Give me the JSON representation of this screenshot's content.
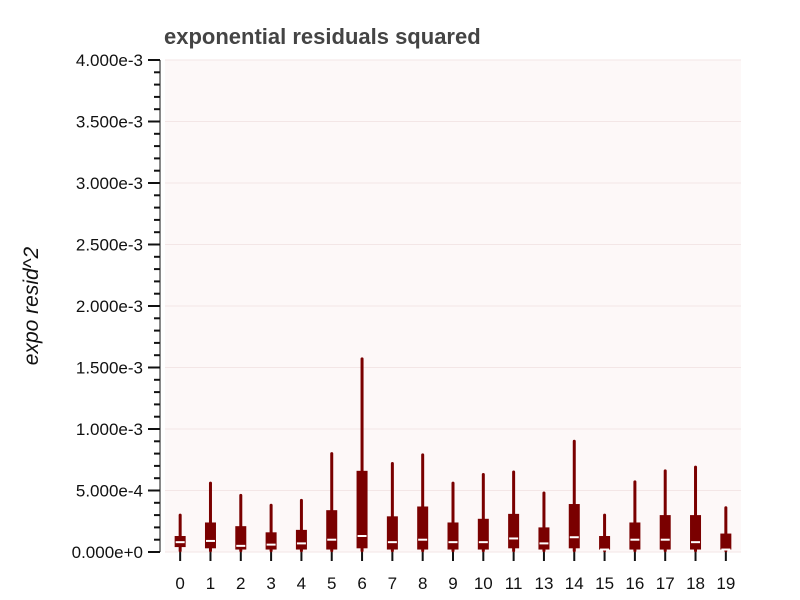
{
  "chart_data": {
    "type": "boxplot",
    "title": "exponential residuals squared",
    "ylabel": "expo resid^2",
    "xlabel": "",
    "ylim": [
      0,
      0.004
    ],
    "yticks": [
      {
        "value": 0,
        "label": "0.000e+0"
      },
      {
        "value": 0.0005,
        "label": "5.000e-4"
      },
      {
        "value": 0.001,
        "label": "1.000e-3"
      },
      {
        "value": 0.0015,
        "label": "1.500e-3"
      },
      {
        "value": 0.002,
        "label": "2.000e-3"
      },
      {
        "value": 0.0025,
        "label": "2.500e-3"
      },
      {
        "value": 0.003,
        "label": "3.000e-3"
      },
      {
        "value": 0.0035,
        "label": "3.500e-3"
      },
      {
        "value": 0.004,
        "label": "4.000e-3"
      }
    ],
    "minor_tick_step": 0.0001,
    "grid": true,
    "colors": {
      "box": "#7a0000",
      "median": "#ffffff",
      "plot_bg": "#fdf8f8",
      "grid": "#f3e6e6",
      "axis": "#111111"
    },
    "categories": [
      "0",
      "1",
      "2",
      "3",
      "4",
      "5",
      "6",
      "7",
      "8",
      "9",
      "10",
      "11",
      "13",
      "14",
      "15",
      "16",
      "17",
      "18",
      "19"
    ],
    "boxes": [
      {
        "category": "0",
        "min": 1e-05,
        "q1": 4e-05,
        "median": 8e-05,
        "q3": 0.00013,
        "max": 0.0003
      },
      {
        "category": "1",
        "min": 1e-05,
        "q1": 3e-05,
        "median": 9e-05,
        "q3": 0.00024,
        "max": 0.00056
      },
      {
        "category": "2",
        "min": 1e-05,
        "q1": 2e-05,
        "median": 5e-05,
        "q3": 0.00021,
        "max": 0.00046
      },
      {
        "category": "3",
        "min": 1e-05,
        "q1": 2e-05,
        "median": 6e-05,
        "q3": 0.00016,
        "max": 0.00038
      },
      {
        "category": "4",
        "min": 1e-05,
        "q1": 2e-05,
        "median": 7e-05,
        "q3": 0.00018,
        "max": 0.00042
      },
      {
        "category": "5",
        "min": 1e-05,
        "q1": 2e-05,
        "median": 0.0001,
        "q3": 0.00034,
        "max": 0.0008
      },
      {
        "category": "6",
        "min": 1e-05,
        "q1": 3e-05,
        "median": 0.00013,
        "q3": 0.00066,
        "max": 0.00157
      },
      {
        "category": "7",
        "min": 1e-05,
        "q1": 2e-05,
        "median": 8e-05,
        "q3": 0.00029,
        "max": 0.00072
      },
      {
        "category": "8",
        "min": 1e-05,
        "q1": 2e-05,
        "median": 0.0001,
        "q3": 0.00037,
        "max": 0.00079
      },
      {
        "category": "9",
        "min": 1e-05,
        "q1": 2e-05,
        "median": 8e-05,
        "q3": 0.00024,
        "max": 0.00056
      },
      {
        "category": "10",
        "min": 1e-05,
        "q1": 2e-05,
        "median": 8e-05,
        "q3": 0.00027,
        "max": 0.00063
      },
      {
        "category": "11",
        "min": 1e-05,
        "q1": 3e-05,
        "median": 0.00011,
        "q3": 0.00031,
        "max": 0.00065
      },
      {
        "category": "13",
        "min": 1e-05,
        "q1": 2e-05,
        "median": 7e-05,
        "q3": 0.0002,
        "max": 0.00048
      },
      {
        "category": "14",
        "min": 1e-05,
        "q1": 3e-05,
        "median": 0.00012,
        "q3": 0.00039,
        "max": 0.0009
      },
      {
        "category": "15",
        "min": 1e-05,
        "q1": 2e-05,
        "median": 2e-05,
        "q3": 0.00013,
        "max": 0.0003
      },
      {
        "category": "16",
        "min": 1e-05,
        "q1": 2e-05,
        "median": 0.0001,
        "q3": 0.00024,
        "max": 0.00057
      },
      {
        "category": "17",
        "min": 1e-05,
        "q1": 2e-05,
        "median": 0.0001,
        "q3": 0.0003,
        "max": 0.00066
      },
      {
        "category": "18",
        "min": 1e-05,
        "q1": 2e-05,
        "median": 8e-05,
        "q3": 0.0003,
        "max": 0.00069
      },
      {
        "category": "19",
        "min": 1e-05,
        "q1": 2e-05,
        "median": 2e-05,
        "q3": 0.00015,
        "max": 0.00036
      }
    ]
  }
}
